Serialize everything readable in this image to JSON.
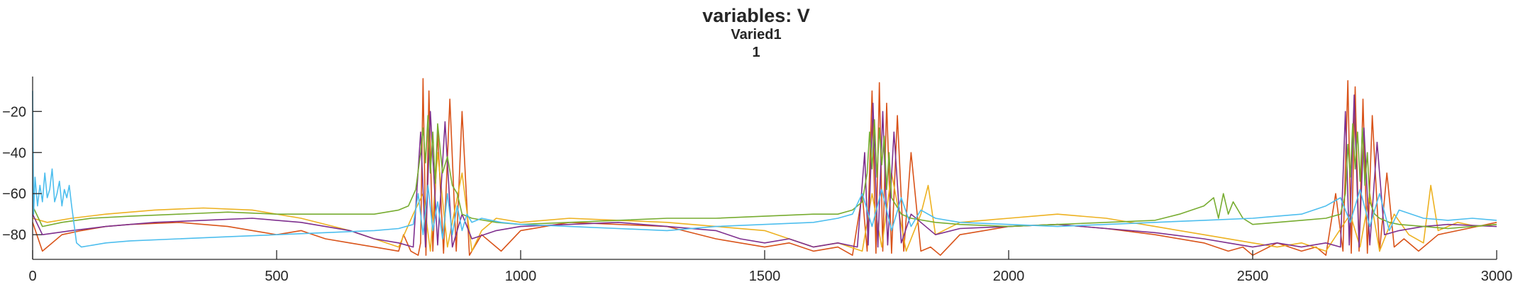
{
  "chart_data": {
    "type": "line",
    "title": "variables: V",
    "subtitle_lines": [
      "Varied1",
      "1"
    ],
    "xlabel": "",
    "ylabel": "",
    "xlim": [
      0,
      3000
    ],
    "ylim": [
      -92,
      -3
    ],
    "xticks": [
      0,
      500,
      1000,
      1500,
      2000,
      2500,
      3000
    ],
    "yticks": [
      -80,
      -60,
      -40,
      -20
    ],
    "grid": false,
    "legend": "none",
    "series_colors": [
      "#0072BD",
      "#D95319",
      "#EDB120",
      "#7E2F8E",
      "#77AC30",
      "#4DBEEE"
    ],
    "series": [
      {
        "color": "#D95319",
        "x": [
          0,
          20,
          60,
          100,
          150,
          200,
          300,
          400,
          500,
          550,
          600,
          650,
          700,
          750,
          760,
          775,
          790,
          795,
          800,
          806,
          812,
          820,
          830,
          842,
          855,
          868,
          880,
          895,
          920,
          960,
          1000,
          1050,
          1100,
          1200,
          1300,
          1400,
          1500,
          1550,
          1600,
          1650,
          1680,
          1700,
          1710,
          1720,
          1728,
          1735,
          1742,
          1750,
          1760,
          1772,
          1785,
          1800,
          1820,
          1840,
          1860,
          1900,
          2000,
          2100,
          2200,
          2300,
          2400,
          2450,
          2480,
          2500,
          2550,
          2600,
          2630,
          2650,
          2670,
          2685,
          2695,
          2702,
          2710,
          2718,
          2726,
          2735,
          2745,
          2760,
          2775,
          2790,
          2810,
          2840,
          2880,
          2920,
          2960,
          3000
        ],
        "y": [
          -74,
          -88,
          -80,
          -78,
          -76,
          -75,
          -74,
          -76,
          -80,
          -78,
          -82,
          -84,
          -86,
          -88,
          -80,
          -88,
          -90,
          -84,
          -4,
          -90,
          -10,
          -88,
          -30,
          -89,
          -14,
          -88,
          -20,
          -90,
          -80,
          -88,
          -78,
          -76,
          -74,
          -75,
          -76,
          -82,
          -86,
          -84,
          -88,
          -86,
          -90,
          -60,
          -88,
          -10,
          -89,
          -6,
          -88,
          -16,
          -89,
          -22,
          -88,
          -40,
          -88,
          -86,
          -90,
          -80,
          -76,
          -75,
          -77,
          -80,
          -84,
          -88,
          -86,
          -90,
          -84,
          -88,
          -86,
          -90,
          -60,
          -88,
          -5,
          -89,
          -8,
          -88,
          -14,
          -89,
          -22,
          -88,
          -50,
          -86,
          -82,
          -88,
          -80,
          -78,
          -76,
          -74
        ]
      },
      {
        "color": "#EDB120",
        "x": [
          0,
          30,
          80,
          150,
          250,
          350,
          450,
          550,
          650,
          700,
          750,
          780,
          800,
          815,
          830,
          850,
          880,
          900,
          920,
          950,
          1000,
          1100,
          1200,
          1300,
          1400,
          1500,
          1550,
          1600,
          1650,
          1700,
          1720,
          1740,
          1760,
          1790,
          1820,
          1835,
          1850,
          1900,
          2000,
          2100,
          2200,
          2300,
          2400,
          2500,
          2550,
          2600,
          2650,
          2700,
          2720,
          2740,
          2760,
          2790,
          2820,
          2850,
          2865,
          2880,
          2920,
          2960,
          3000
        ],
        "y": [
          -72,
          -74,
          -72,
          -70,
          -68,
          -67,
          -68,
          -72,
          -78,
          -82,
          -86,
          -70,
          -60,
          -88,
          -40,
          -86,
          -50,
          -88,
          -78,
          -72,
          -74,
          -72,
          -73,
          -74,
          -76,
          -78,
          -82,
          -86,
          -84,
          -88,
          -60,
          -86,
          -50,
          -88,
          -70,
          -56,
          -80,
          -74,
          -72,
          -70,
          -72,
          -76,
          -80,
          -84,
          -86,
          -84,
          -88,
          -70,
          -86,
          -60,
          -88,
          -70,
          -80,
          -84,
          -56,
          -78,
          -74,
          -76,
          -75
        ]
      },
      {
        "color": "#7E2F8E",
        "x": [
          0,
          20,
          80,
          150,
          250,
          350,
          450,
          550,
          650,
          700,
          750,
          780,
          795,
          805,
          815,
          830,
          845,
          860,
          880,
          900,
          950,
          1000,
          1100,
          1200,
          1300,
          1400,
          1450,
          1500,
          1550,
          1600,
          1650,
          1690,
          1705,
          1712,
          1722,
          1732,
          1742,
          1752,
          1765,
          1780,
          1800,
          1850,
          1900,
          2000,
          2100,
          2200,
          2300,
          2400,
          2450,
          2500,
          2550,
          2600,
          2650,
          2680,
          2690,
          2698,
          2708,
          2718,
          2728,
          2740,
          2755,
          2770,
          2800,
          2850,
          2900,
          3000
        ],
        "y": [
          -70,
          -80,
          -78,
          -76,
          -74,
          -73,
          -72,
          -74,
          -78,
          -82,
          -84,
          -86,
          -30,
          -86,
          -20,
          -85,
          -25,
          -86,
          -70,
          -82,
          -78,
          -76,
          -75,
          -74,
          -76,
          -78,
          -82,
          -84,
          -82,
          -86,
          -84,
          -86,
          -40,
          -85,
          -16,
          -86,
          -20,
          -85,
          -30,
          -84,
          -70,
          -80,
          -77,
          -76,
          -75,
          -77,
          -79,
          -82,
          -84,
          -86,
          -84,
          -86,
          -84,
          -86,
          -20,
          -85,
          -12,
          -86,
          -28,
          -85,
          -35,
          -80,
          -78,
          -76,
          -75,
          -76
        ]
      },
      {
        "color": "#77AC30",
        "x": [
          0,
          20,
          60,
          120,
          200,
          300,
          400,
          500,
          600,
          700,
          750,
          770,
          785,
          795,
          800,
          805,
          810,
          815,
          820,
          825,
          830,
          840,
          850,
          860,
          870,
          880,
          900,
          950,
          1000,
          1100,
          1200,
          1300,
          1400,
          1500,
          1600,
          1650,
          1680,
          1700,
          1710,
          1715,
          1720,
          1725,
          1730,
          1735,
          1740,
          1745,
          1750,
          1755,
          1760,
          1770,
          1780,
          1800,
          1850,
          1900,
          2000,
          2100,
          2200,
          2300,
          2350,
          2400,
          2420,
          2430,
          2440,
          2450,
          2460,
          2480,
          2500,
          2550,
          2600,
          2650,
          2680,
          2690,
          2695,
          2700,
          2705,
          2710,
          2715,
          2720,
          2725,
          2730,
          2735,
          2740,
          2750,
          2760,
          2780,
          2800,
          2850,
          2900,
          2950,
          3000
        ],
        "y": [
          -66,
          -76,
          -74,
          -72,
          -71,
          -70,
          -69,
          -70,
          -70,
          -70,
          -68,
          -66,
          -58,
          -40,
          -28,
          -45,
          -22,
          -50,
          -30,
          -55,
          -26,
          -50,
          -42,
          -56,
          -60,
          -70,
          -72,
          -74,
          -75,
          -74,
          -73,
          -72,
          -72,
          -71,
          -70,
          -70,
          -68,
          -64,
          -50,
          -30,
          -48,
          -24,
          -52,
          -28,
          -46,
          -32,
          -58,
          -40,
          -62,
          -66,
          -70,
          -72,
          -74,
          -75,
          -76,
          -75,
          -74,
          -73,
          -70,
          -66,
          -62,
          -72,
          -60,
          -70,
          -64,
          -72,
          -75,
          -74,
          -73,
          -72,
          -70,
          -60,
          -36,
          -52,
          -26,
          -48,
          -30,
          -54,
          -28,
          -56,
          -40,
          -64,
          -70,
          -72,
          -74,
          -75,
          -76,
          -77,
          -76,
          -75
        ]
      },
      {
        "color": "#4DBEEE",
        "x": [
          0,
          2,
          5,
          10,
          15,
          20,
          25,
          30,
          35,
          40,
          45,
          50,
          55,
          60,
          65,
          70,
          75,
          80,
          90,
          100,
          150,
          200,
          300,
          400,
          500,
          600,
          700,
          750,
          780,
          790,
          800,
          810,
          820,
          830,
          840,
          850,
          860,
          870,
          880,
          890,
          900,
          920,
          960,
          1000,
          1100,
          1200,
          1300,
          1400,
          1500,
          1600,
          1650,
          1680,
          1700,
          1720,
          1740,
          1760,
          1780,
          1800,
          1820,
          1850,
          1900,
          2000,
          2100,
          2200,
          2300,
          2400,
          2500,
          2600,
          2650,
          2680,
          2700,
          2720,
          2740,
          2760,
          2780,
          2800,
          2850,
          2900,
          2950,
          3000
        ],
        "y": [
          -10,
          -70,
          -52,
          -66,
          -56,
          -64,
          -50,
          -62,
          -58,
          -48,
          -64,
          -60,
          -54,
          -66,
          -58,
          -62,
          -56,
          -66,
          -84,
          -86,
          -84,
          -83,
          -82,
          -81,
          -80,
          -79,
          -78,
          -77,
          -75,
          -60,
          -80,
          -56,
          -78,
          -64,
          -82,
          -60,
          -80,
          -66,
          -78,
          -70,
          -74,
          -72,
          -74,
          -75,
          -76,
          -77,
          -78,
          -76,
          -75,
          -74,
          -72,
          -70,
          -60,
          -76,
          -58,
          -78,
          -62,
          -76,
          -68,
          -72,
          -74,
          -75,
          -76,
          -75,
          -74,
          -73,
          -72,
          -70,
          -66,
          -62,
          -74,
          -58,
          -76,
          -60,
          -78,
          -68,
          -72,
          -73,
          -72,
          -73
        ]
      }
    ]
  }
}
